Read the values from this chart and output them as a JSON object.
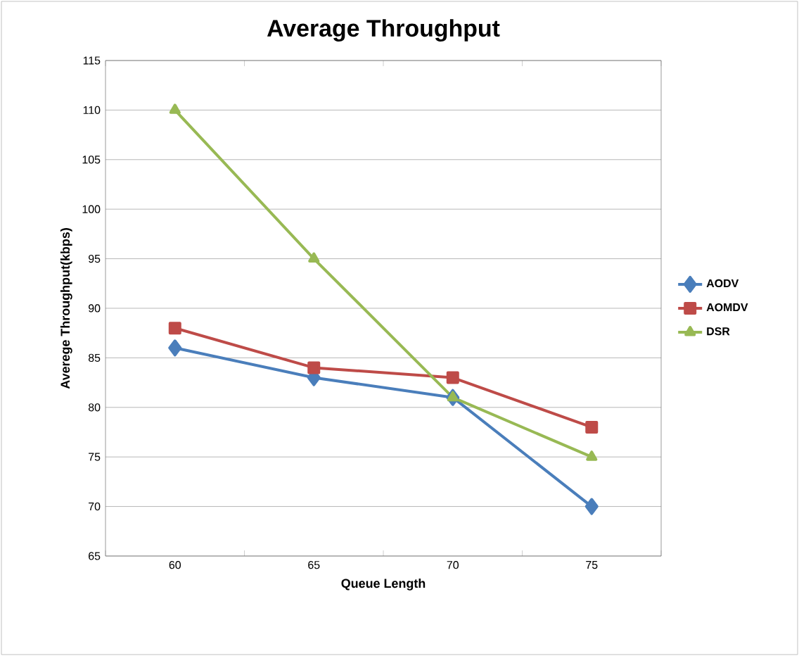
{
  "chart_data": {
    "type": "line",
    "title": "Average Throughput",
    "xlabel": "Queue Length",
    "ylabel": "Averege Throughput(kbps)",
    "categories": [
      "60",
      "65",
      "70",
      "75"
    ],
    "series": [
      {
        "name": "AODV",
        "color": "#4a7ebb",
        "marker": "diamond",
        "values": [
          86,
          83,
          81,
          70
        ]
      },
      {
        "name": "AOMDV",
        "color": "#be4b48",
        "marker": "square",
        "values": [
          88,
          84,
          83,
          78
        ]
      },
      {
        "name": "DSR",
        "color": "#98b954",
        "marker": "triangle",
        "values": [
          110,
          95,
          81,
          75
        ]
      }
    ],
    "ylim": [
      65,
      115
    ],
    "yticks": [
      65,
      70,
      75,
      80,
      85,
      90,
      95,
      100,
      105,
      110,
      115
    ],
    "grid": "y",
    "legend": "right"
  }
}
